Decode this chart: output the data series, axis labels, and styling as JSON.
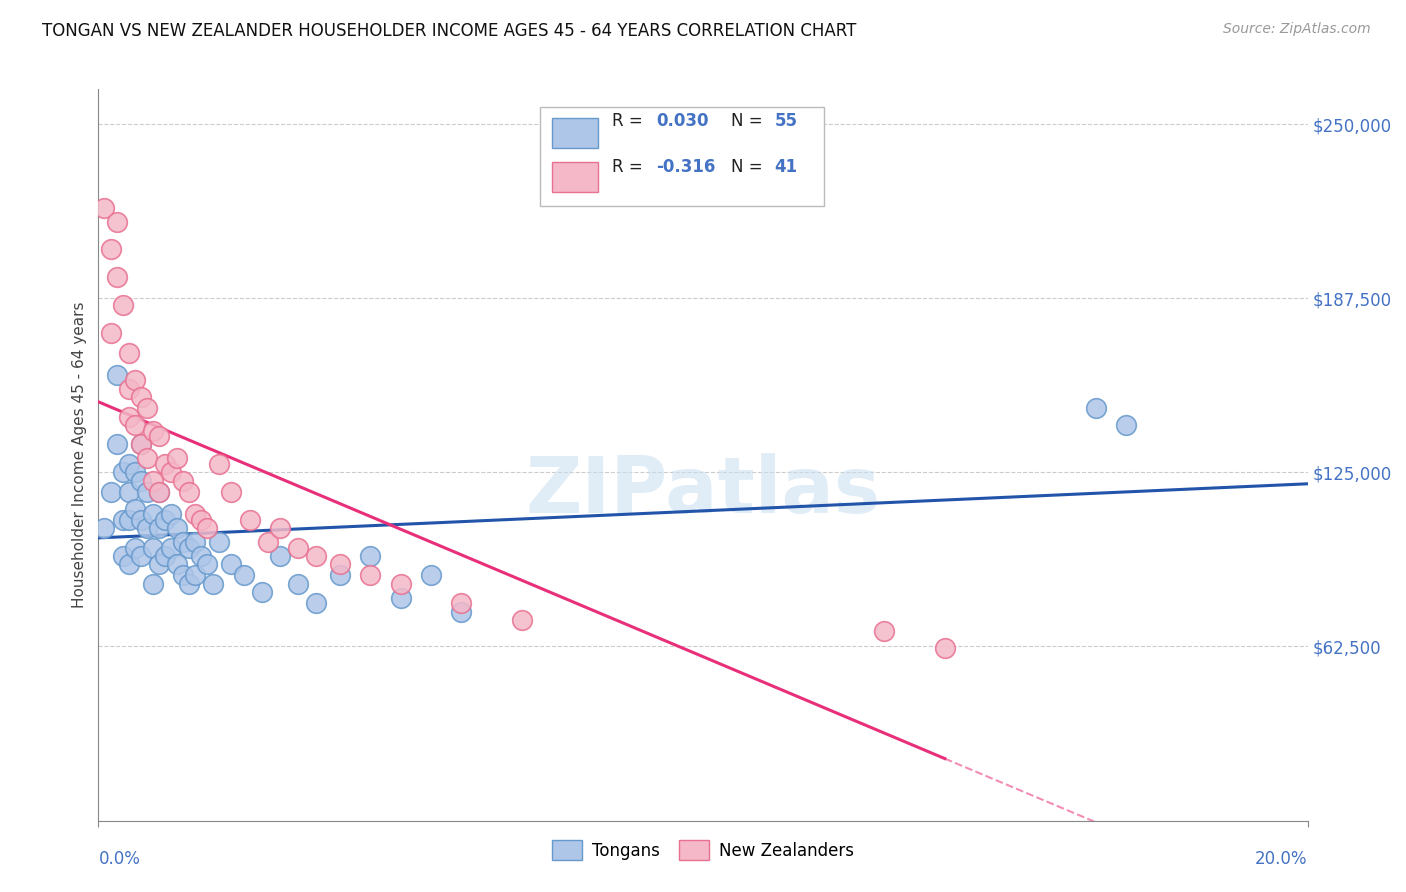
{
  "title": "TONGAN VS NEW ZEALANDER HOUSEHOLDER INCOME AGES 45 - 64 YEARS CORRELATION CHART",
  "source": "Source: ZipAtlas.com",
  "ylabel": "Householder Income Ages 45 - 64 years",
  "xlim": [
    0.0,
    0.2
  ],
  "ylim": [
    0,
    262500
  ],
  "yticks": [
    0,
    62500,
    125000,
    187500,
    250000
  ],
  "ytick_labels": [
    "",
    "$62,500",
    "$125,000",
    "$187,500",
    "$250,000"
  ],
  "color_tongan_fill": "#aec6e8",
  "color_tongan_edge": "#6699cc",
  "color_nz_fill": "#f4b8c8",
  "color_nz_edge": "#e87090",
  "color_tongan_line": "#2255aa",
  "color_nz_line": "#e8307a",
  "color_axis_blue": "#4472c4",
  "watermark_text": "ZIPatlas",
  "tongan_x": [
    0.001,
    0.002,
    0.003,
    0.003,
    0.004,
    0.004,
    0.004,
    0.005,
    0.005,
    0.005,
    0.005,
    0.006,
    0.006,
    0.006,
    0.007,
    0.007,
    0.007,
    0.007,
    0.008,
    0.008,
    0.009,
    0.009,
    0.009,
    0.01,
    0.01,
    0.01,
    0.011,
    0.011,
    0.012,
    0.012,
    0.013,
    0.013,
    0.014,
    0.014,
    0.015,
    0.015,
    0.016,
    0.016,
    0.017,
    0.018,
    0.019,
    0.02,
    0.022,
    0.024,
    0.027,
    0.03,
    0.033,
    0.036,
    0.04,
    0.045,
    0.05,
    0.055,
    0.06,
    0.165,
    0.17
  ],
  "tongan_y": [
    105000,
    118000,
    135000,
    160000,
    125000,
    108000,
    95000,
    128000,
    118000,
    108000,
    92000,
    125000,
    112000,
    98000,
    135000,
    122000,
    108000,
    95000,
    118000,
    105000,
    110000,
    98000,
    85000,
    118000,
    105000,
    92000,
    108000,
    95000,
    110000,
    98000,
    105000,
    92000,
    100000,
    88000,
    98000,
    85000,
    100000,
    88000,
    95000,
    92000,
    85000,
    100000,
    92000,
    88000,
    82000,
    95000,
    85000,
    78000,
    88000,
    95000,
    80000,
    88000,
    75000,
    148000,
    142000
  ],
  "nz_x": [
    0.001,
    0.002,
    0.002,
    0.003,
    0.003,
    0.004,
    0.005,
    0.005,
    0.005,
    0.006,
    0.006,
    0.007,
    0.007,
    0.008,
    0.008,
    0.009,
    0.009,
    0.01,
    0.01,
    0.011,
    0.012,
    0.013,
    0.014,
    0.015,
    0.016,
    0.017,
    0.018,
    0.02,
    0.022,
    0.025,
    0.028,
    0.03,
    0.033,
    0.036,
    0.04,
    0.045,
    0.05,
    0.06,
    0.07,
    0.13,
    0.14
  ],
  "nz_y": [
    220000,
    205000,
    175000,
    215000,
    195000,
    185000,
    168000,
    155000,
    145000,
    158000,
    142000,
    152000,
    135000,
    148000,
    130000,
    140000,
    122000,
    138000,
    118000,
    128000,
    125000,
    130000,
    122000,
    118000,
    110000,
    108000,
    105000,
    128000,
    118000,
    108000,
    100000,
    105000,
    98000,
    95000,
    92000,
    88000,
    85000,
    78000,
    72000,
    68000,
    62000
  ]
}
